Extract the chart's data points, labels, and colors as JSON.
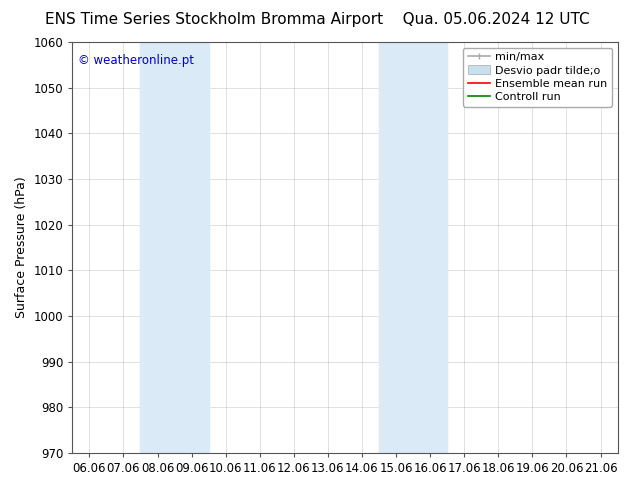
{
  "title_left": "ENS Time Series Stockholm Bromma Airport",
  "title_right": "Qua. 05.06.2024 12 UTC",
  "ylabel": "Surface Pressure (hPa)",
  "ylim": [
    970,
    1060
  ],
  "yticks": [
    970,
    980,
    990,
    1000,
    1010,
    1020,
    1030,
    1040,
    1050,
    1060
  ],
  "xtick_labels": [
    "06.06",
    "07.06",
    "08.06",
    "09.06",
    "10.06",
    "11.06",
    "12.06",
    "13.06",
    "14.06",
    "15.06",
    "16.06",
    "17.06",
    "18.06",
    "19.06",
    "20.06",
    "21.06"
  ],
  "x_positions": [
    0,
    1,
    2,
    3,
    4,
    5,
    6,
    7,
    8,
    9,
    10,
    11,
    12,
    13,
    14,
    15
  ],
  "shaded_regions": [
    {
      "xmin": 2,
      "xmax": 4,
      "color": "#daeaf7"
    },
    {
      "xmin": 9,
      "xmax": 11,
      "color": "#daeaf7"
    }
  ],
  "watermark": "© weatheronline.pt",
  "watermark_color": "#0000cc",
  "background_color": "#ffffff",
  "plot_bg_color": "#ffffff",
  "grid_color": "#aaaaaa",
  "legend_label_minmax": "min/max",
  "legend_label_std": "Desvio padr tilde;o",
  "legend_label_ensemble": "Ensemble mean run",
  "legend_label_control": "Controll run",
  "legend_color_minmax": "#aaaaaa",
  "legend_color_std": "#c8dff0",
  "legend_color_ensemble": "#ff0000",
  "legend_color_control": "#008000",
  "title_fontsize": 11,
  "axis_label_fontsize": 9,
  "tick_fontsize": 8.5,
  "legend_fontsize": 8
}
